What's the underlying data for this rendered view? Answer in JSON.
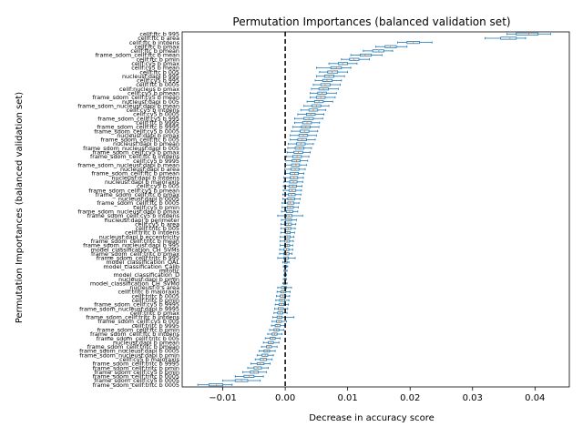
{
  "chart_data": {
    "type": "box",
    "orientation": "horizontal",
    "title": "Permutation Importances (balanced validation set)",
    "xlabel": "Decrease in accuracy score",
    "ylabel": "Permutation Importances (balanced validation set)",
    "xlim": [
      -0.0165,
      0.0455
    ],
    "xticks": [
      -0.01,
      0.0,
      0.01,
      0.02,
      0.03,
      0.04
    ],
    "xtick_labels": [
      "−0.01",
      "0.00",
      "0.01",
      "0.02",
      "0.03",
      "0.04"
    ],
    "reference_line": {
      "x": 0.0,
      "style": "dashed",
      "color": "#000000"
    },
    "box_color": "#1f77b4",
    "median_color": "#ff7f0e",
    "features": [
      {
        "label": "cellf:ftc b 995",
        "low": 0.0355,
        "q1": 0.037,
        "median": 0.039,
        "q3": 0.0405,
        "high": 0.0425
      },
      {
        "label": "cellf:ftc b area",
        "low": 0.032,
        "q1": 0.0345,
        "median": 0.036,
        "q3": 0.037,
        "high": 0.0385
      },
      {
        "label": "cellf:ftc b intdens",
        "low": 0.018,
        "q1": 0.0195,
        "median": 0.0205,
        "q3": 0.0215,
        "high": 0.0235
      },
      {
        "label": "cellf:ftc b pmax",
        "low": 0.0145,
        "q1": 0.016,
        "median": 0.0168,
        "q3": 0.0178,
        "high": 0.0195
      },
      {
        "label": "cellf:ftc b pmean",
        "low": 0.0125,
        "q1": 0.014,
        "median": 0.015,
        "q3": 0.0158,
        "high": 0.0172
      },
      {
        "label": "frame_sdom_cellf:ftc b mean",
        "low": 0.0105,
        "q1": 0.012,
        "median": 0.0128,
        "q3": 0.0138,
        "high": 0.0155
      },
      {
        "label": "cellf:ftc b pmin",
        "low": 0.009,
        "q1": 0.0103,
        "median": 0.011,
        "q3": 0.0118,
        "high": 0.0135
      },
      {
        "label": "cellf:cy5 b pmax",
        "low": 0.007,
        "q1": 0.0085,
        "median": 0.0092,
        "q3": 0.01,
        "high": 0.0115
      },
      {
        "label": "cellf:cy5 b mean",
        "low": 0.005,
        "q1": 0.0073,
        "median": 0.0082,
        "q3": 0.009,
        "high": 0.0105
      },
      {
        "label": "cellf:ftc b 005",
        "low": 0.0055,
        "q1": 0.0068,
        "median": 0.0075,
        "q3": 0.0084,
        "high": 0.01
      },
      {
        "label": "nucleusf:dapi b 995",
        "low": 0.005,
        "q1": 0.0063,
        "median": 0.007,
        "q3": 0.0078,
        "high": 0.0095
      },
      {
        "label": "cellf:cy5 b 995",
        "low": 0.0048,
        "q1": 0.006,
        "median": 0.0067,
        "q3": 0.0075,
        "high": 0.009
      },
      {
        "label": "cellf:ftc b 0005",
        "low": 0.0045,
        "q1": 0.0057,
        "median": 0.0064,
        "q3": 0.0072,
        "high": 0.0088
      },
      {
        "label": "cellf:nucleus b pmax",
        "low": 0.0042,
        "q1": 0.0054,
        "median": 0.0061,
        "q3": 0.0069,
        "high": 0.0085
      },
      {
        "label": "cellf:cy5 b pmean",
        "low": 0.004,
        "q1": 0.0052,
        "median": 0.0059,
        "q3": 0.0066,
        "high": 0.0082
      },
      {
        "label": "frame_sdom_cellf:cy5 b mean",
        "low": 0.004,
        "q1": 0.005,
        "median": 0.0057,
        "q3": 0.0064,
        "high": 0.008
      },
      {
        "label": "nucleusf:dapi b 005",
        "low": 0.0035,
        "q1": 0.0047,
        "median": 0.0054,
        "q3": 0.0061,
        "high": 0.0076
      },
      {
        "label": "frame_sdom_nucleusf:dapi b mean",
        "low": 0.003,
        "q1": 0.0043,
        "median": 0.005,
        "q3": 0.0057,
        "high": 0.007
      },
      {
        "label": "cellf:cy5 b intdens",
        "low": 0.0025,
        "q1": 0.0038,
        "median": 0.0045,
        "q3": 0.0052,
        "high": 0.0065
      },
      {
        "label": "cellf:cy5 b 0005",
        "low": 0.002,
        "q1": 0.0034,
        "median": 0.0041,
        "q3": 0.0048,
        "high": 0.0062
      },
      {
        "label": "frame_sdom_cellf:cy5 b 995",
        "low": 0.0015,
        "q1": 0.003,
        "median": 0.0038,
        "q3": 0.0045,
        "high": 0.006
      },
      {
        "label": "cellf:ftc b 9995",
        "low": 0.0015,
        "q1": 0.0028,
        "median": 0.0035,
        "q3": 0.0042,
        "high": 0.0055
      },
      {
        "label": "frame_sdom_cellf:ftc b 9995",
        "low": 0.0012,
        "q1": 0.0026,
        "median": 0.0033,
        "q3": 0.004,
        "high": 0.0054
      },
      {
        "label": "frame_sdom_cellf:cy5 b 0005",
        "low": 0.001,
        "q1": 0.0024,
        "median": 0.0031,
        "q3": 0.0038,
        "high": 0.0052
      },
      {
        "label": "nucleusf:dapi b pmax",
        "low": 0.0008,
        "q1": 0.0022,
        "median": 0.0029,
        "q3": 0.0036,
        "high": 0.005
      },
      {
        "label": "frame_sdom_cellf:ftc b 005",
        "low": 0.0008,
        "q1": 0.002,
        "median": 0.0027,
        "q3": 0.0034,
        "high": 0.0048
      },
      {
        "label": "nucleusf:dapi b pmean",
        "low": 0.0005,
        "q1": 0.0018,
        "median": 0.0025,
        "q3": 0.0032,
        "high": 0.0045
      },
      {
        "label": "frame_sdom_nucleusf:dapi b 005",
        "low": 0.0004,
        "q1": 0.0016,
        "median": 0.0023,
        "q3": 0.003,
        "high": 0.0042
      },
      {
        "label": "frame_sdom_cellf:cy5 b pmax",
        "low": 0.0003,
        "q1": 0.0014,
        "median": 0.0021,
        "q3": 0.0028,
        "high": 0.004
      },
      {
        "label": "frame_sdom_cellf:ftc b intdens",
        "low": 0.0002,
        "q1": 0.0012,
        "median": 0.0019,
        "q3": 0.0026,
        "high": 0.0038
      },
      {
        "label": "cellf:cy5 b 9995",
        "low": 0.0001,
        "q1": 0.0011,
        "median": 0.0018,
        "q3": 0.0024,
        "high": 0.0036
      },
      {
        "label": "frame_sdom_nucleusf:dapi b mean",
        "low": 0.0,
        "q1": 0.001,
        "median": 0.0017,
        "q3": 0.0023,
        "high": 0.0034
      },
      {
        "label": "nucleusf:dapi b area",
        "low": -0.0001,
        "q1": 0.0009,
        "median": 0.0016,
        "q3": 0.0022,
        "high": 0.0032
      },
      {
        "label": "frame_sdom_cellf:ftc b pmean",
        "low": -0.0001,
        "q1": 0.0008,
        "median": 0.0015,
        "q3": 0.0021,
        "high": 0.003
      },
      {
        "label": "nucleusf:dapi b intdens",
        "low": -0.0002,
        "q1": 0.0008,
        "median": 0.0014,
        "q3": 0.002,
        "high": 0.0029
      },
      {
        "label": "nucleusf:dapi b majoraxis",
        "low": -0.0002,
        "q1": 0.0007,
        "median": 0.0013,
        "q3": 0.0019,
        "high": 0.0028
      },
      {
        "label": "cellf:cy5 b 005",
        "low": -0.0003,
        "q1": 0.0006,
        "median": 0.0012,
        "q3": 0.0018,
        "high": 0.0027
      },
      {
        "label": "frame_sdom_cellf:cy5 b pmean",
        "low": -0.0003,
        "q1": 0.0006,
        "median": 0.0011,
        "q3": 0.0017,
        "high": 0.0026
      },
      {
        "label": "frame_sdom_cellf:ftc b pmax",
        "low": -0.0004,
        "q1": 0.0005,
        "median": 0.001,
        "q3": 0.0016,
        "high": 0.0025
      },
      {
        "label": "nucleusf:dapi b 0005",
        "low": -0.0004,
        "q1": 0.0004,
        "median": 0.0009,
        "q3": 0.0015,
        "high": 0.0024
      },
      {
        "label": "frame_sdom_cellf:ftc b 0005",
        "low": -0.0005,
        "q1": 0.0004,
        "median": 0.0008,
        "q3": 0.0014,
        "high": 0.0022
      },
      {
        "label": "cellf:cy5 b pmin",
        "low": -0.0005,
        "q1": 0.0003,
        "median": 0.0008,
        "q3": 0.0013,
        "high": 0.0021
      },
      {
        "label": "frame_sdom_nucleusf:dapi b pmax",
        "low": -0.0006,
        "q1": 0.0002,
        "median": 0.0007,
        "q3": 0.0012,
        "high": 0.002
      },
      {
        "label": "frame_sdom_cellf:cy5 b intdens",
        "low": -0.0012,
        "q1": 0.0002,
        "median": 0.0006,
        "q3": 0.0011,
        "high": 0.0028
      },
      {
        "label": "nucleusf:dapi b perimeter",
        "low": -0.0006,
        "q1": 0.0001,
        "median": 0.0006,
        "q3": 0.001,
        "high": 0.0018
      },
      {
        "label": "cellf:cy5 b area",
        "low": -0.0007,
        "q1": 0.0001,
        "median": 0.0005,
        "q3": 0.001,
        "high": 0.0017
      },
      {
        "label": "cellf:tritc b 005",
        "low": -0.0007,
        "q1": 0.0,
        "median": 0.0005,
        "q3": 0.0009,
        "high": 0.0016
      },
      {
        "label": "cellf:tritc b intdens",
        "low": -0.0007,
        "q1": 0.0,
        "median": 0.0004,
        "q3": 0.0008,
        "high": 0.0015
      },
      {
        "label": "nucleusf:dapi b eccentricity",
        "low": -0.0008,
        "q1": -0.0001,
        "median": 0.0004,
        "q3": 0.0008,
        "high": 0.0014
      },
      {
        "label": "frame_sdom_cellf:tritc b mean",
        "low": -0.0008,
        "q1": -0.0001,
        "median": 0.0003,
        "q3": 0.0007,
        "high": 0.0013
      },
      {
        "label": "frame_sdom_nucleusf:dapi b 995",
        "low": -0.0008,
        "q1": -0.0001,
        "median": 0.0003,
        "q3": 0.0007,
        "high": 0.0012
      },
      {
        "label": "model_classification_CH_SVMs",
        "low": -0.0009,
        "q1": -0.0002,
        "median": 0.0002,
        "q3": 0.0006,
        "high": 0.0012
      },
      {
        "label": "frame_sdom_cellf:tritc b pmax",
        "low": -0.0009,
        "q1": -0.0002,
        "median": 0.0002,
        "q3": 0.0006,
        "high": 0.0011
      },
      {
        "label": "frame_sdom_cellf:tritc b 995",
        "low": -0.0012,
        "q1": -0.0002,
        "median": 0.0001,
        "q3": 0.0005,
        "high": 0.0016
      },
      {
        "label": "model_classification_QAL",
        "low": -0.0004,
        "q1": -0.0001,
        "median": 0.0001,
        "q3": 0.0003,
        "high": 0.0006
      },
      {
        "label": "model_classification_Calib",
        "low": -0.0003,
        "q1": -0.0001,
        "median": 0.0,
        "q3": 0.0002,
        "high": 0.0004
      },
      {
        "label": "mitotic",
        "low": -0.0002,
        "q1": -0.0001,
        "median": 0.0,
        "q3": 0.0001,
        "high": 0.0003
      },
      {
        "label": "model_classification_D",
        "low": -0.0002,
        "q1": -0.0001,
        "median": 0.0,
        "q3": 0.0001,
        "high": 0.0002
      },
      {
        "label": "nucleusf:dapi b pmin",
        "low": -0.0003,
        "q1": -0.0001,
        "median": 0.0,
        "q3": 0.0001,
        "high": 0.0002
      },
      {
        "label": "model_classification_CH_SVMd",
        "low": -0.0004,
        "q1": -0.0002,
        "median": -0.0001,
        "q3": 0.0001,
        "high": 0.0003
      },
      {
        "label": "nucleusf:0 s area",
        "low": -0.0012,
        "q1": -0.0006,
        "median": -0.0002,
        "q3": 0.0002,
        "high": 0.001
      },
      {
        "label": "cellf:tritc b majoraxis",
        "low": -0.0013,
        "q1": -0.0007,
        "median": -0.0003,
        "q3": 0.0001,
        "high": 0.0008
      },
      {
        "label": "cellf:tritc b 0005",
        "low": -0.0014,
        "q1": -0.0008,
        "median": -0.0004,
        "q3": 0.0,
        "high": 0.0007
      },
      {
        "label": "cellf:tritc b pmin",
        "low": -0.0015,
        "q1": -0.0009,
        "median": -0.0005,
        "q3": -0.0001,
        "high": 0.0006
      },
      {
        "label": "frame_sdom_cellf:cy5 b 9995",
        "low": -0.0016,
        "q1": -0.001,
        "median": -0.0006,
        "q3": -0.0002,
        "high": 0.0005
      },
      {
        "label": "frame_sdom_nucleusf:dapi b 9995",
        "low": -0.0017,
        "q1": -0.0011,
        "median": -0.0007,
        "q3": -0.0003,
        "high": 0.0004
      },
      {
        "label": "cellf:tritc b pmax",
        "low": -0.0018,
        "q1": -0.0012,
        "median": -0.0008,
        "q3": -0.0004,
        "high": 0.0003
      },
      {
        "label": "frame_sdom_cellf:tritc b intdens",
        "low": -0.002,
        "q1": -0.0013,
        "median": -0.0009,
        "q3": -0.0005,
        "high": 0.0014
      },
      {
        "label": "frame_sdom_cellf:cy5 b 005",
        "low": -0.0021,
        "q1": -0.0014,
        "median": -0.001,
        "q3": -0.0006,
        "high": 0.0002
      },
      {
        "label": "cellf:tritc b 9995",
        "low": -0.0022,
        "q1": -0.0016,
        "median": -0.0012,
        "q3": -0.0008,
        "high": 0.0
      },
      {
        "label": "frame_sdom_cellf:ftc b pmin",
        "low": -0.0025,
        "q1": -0.0018,
        "median": -0.0014,
        "q3": -0.001,
        "high": -0.0002
      },
      {
        "label": "frame_sdom_cellf:ftc b intdens",
        "low": -0.0028,
        "q1": -0.0021,
        "median": -0.0017,
        "q3": -0.0013,
        "high": -0.0005
      },
      {
        "label": "frame_sdom_cellf:tritc b 005",
        "low": -0.0032,
        "q1": -0.0024,
        "median": -0.002,
        "q3": -0.0016,
        "high": -0.0008
      },
      {
        "label": "nucleusf:dapi b pmean",
        "low": -0.0035,
        "q1": -0.0027,
        "median": -0.0023,
        "q3": -0.0019,
        "high": -0.001
      },
      {
        "label": "frame_sdom_cellf:tritc b pmean",
        "low": -0.0038,
        "q1": -0.003,
        "median": -0.0026,
        "q3": -0.0022,
        "high": -0.0013
      },
      {
        "label": "frame_sdom_nucleusf:dapi b 0005",
        "low": -0.0042,
        "q1": -0.0034,
        "median": -0.0029,
        "q3": -0.0025,
        "high": -0.0016
      },
      {
        "label": "frame_sdom_nucleusf:dapi b pmin",
        "low": -0.0045,
        "q1": -0.0037,
        "median": -0.0032,
        "q3": -0.0028,
        "high": -0.0019
      },
      {
        "label": "cellf:cy5 b majoraxis",
        "low": -0.0048,
        "q1": -0.004,
        "median": -0.0035,
        "q3": -0.003,
        "high": -0.0021
      },
      {
        "label": "frame_sdom_cellf:tritc b 9995",
        "low": -0.0055,
        "q1": -0.0045,
        "median": -0.004,
        "q3": -0.0034,
        "high": -0.0024
      },
      {
        "label": "frame_sdom_cellf:tritc b pmin",
        "low": -0.006,
        "q1": -0.005,
        "median": -0.0044,
        "q3": -0.0038,
        "high": -0.0027
      },
      {
        "label": "frame_sdom_cellf:cy5 b pmin",
        "low": -0.0068,
        "q1": -0.0056,
        "median": -0.005,
        "q3": -0.0043,
        "high": -0.003
      },
      {
        "label": "frame_sdom_cellf:tritc b 0005",
        "low": -0.008,
        "q1": -0.0066,
        "median": -0.0058,
        "q3": -0.005,
        "high": -0.0035
      },
      {
        "label": "frame_sdom_cellf:cy5 b 0005",
        "low": -0.01,
        "q1": -0.008,
        "median": -0.007,
        "q3": -0.006,
        "high": -0.004
      },
      {
        "label": "frame_sdom_cellf:tritc b 0005",
        "low": -0.014,
        "q1": -0.0122,
        "median": -0.011,
        "q3": -0.01,
        "high": -0.0085
      }
    ]
  }
}
